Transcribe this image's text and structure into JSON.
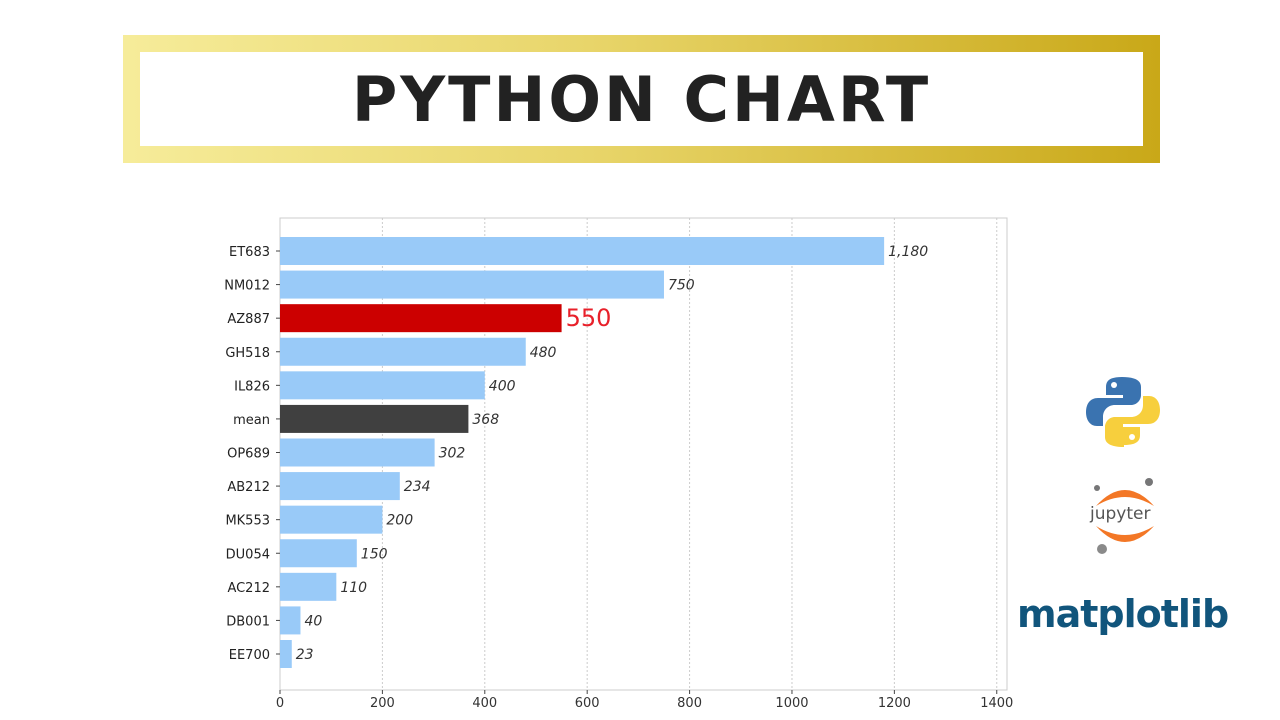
{
  "banner": {
    "title": "PYTHON CHART"
  },
  "logos": {
    "python": "python-logo",
    "jupyter": "jupyter",
    "matplotlib": "matplotlib"
  },
  "chart_data": {
    "type": "bar",
    "orientation": "horizontal",
    "categories": [
      "ET683",
      "NM012",
      "AZ887",
      "GH518",
      "IL826",
      "mean",
      "OP689",
      "AB212",
      "MK553",
      "DU054",
      "AC212",
      "DB001",
      "EE700"
    ],
    "values": [
      1180,
      750,
      550,
      480,
      400,
      368,
      302,
      234,
      200,
      150,
      110,
      40,
      23
    ],
    "data_labels": [
      "1,180",
      "750",
      "550",
      "480",
      "400",
      "368",
      "302",
      "234",
      "200",
      "150",
      "110",
      "40",
      "23"
    ],
    "highlight": {
      "category": "AZ887",
      "color": "#cc0000",
      "label_color": "#e8202a"
    },
    "mean_color": "#404040",
    "bar_color": "#99caf8",
    "xlim": [
      0,
      1420
    ],
    "xticks": [
      0,
      200,
      400,
      600,
      800,
      1000,
      1200,
      1400
    ],
    "grid": "vertical dashed",
    "title": "",
    "xlabel": "",
    "ylabel": ""
  }
}
